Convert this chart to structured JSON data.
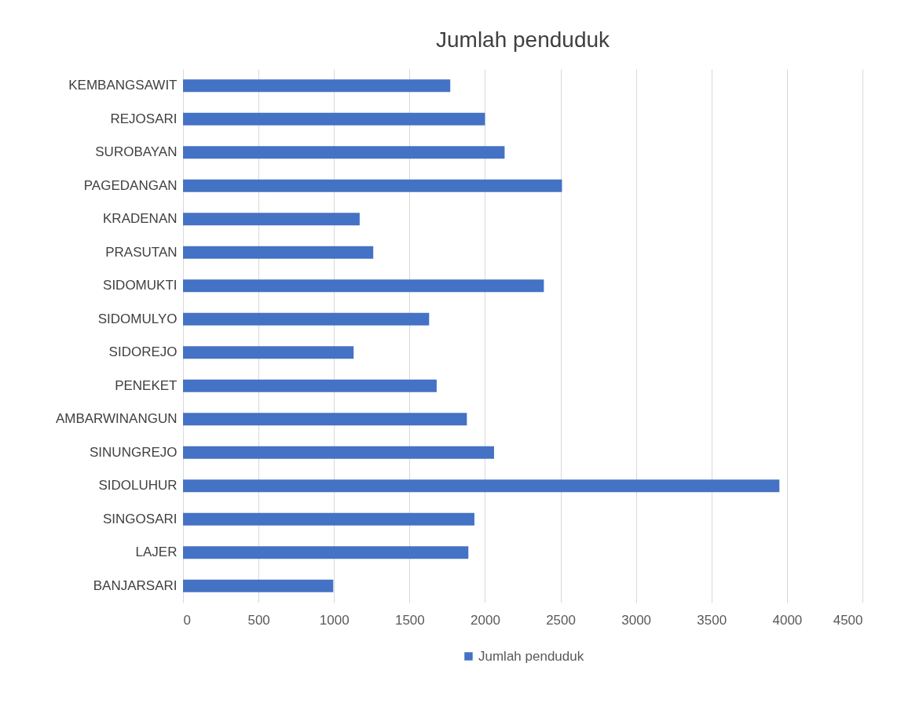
{
  "chart_data": {
    "type": "bar",
    "orientation": "horizontal",
    "title": "Jumlah penduduk",
    "categories": [
      "KEMBANGSAWIT",
      "REJOSARI",
      "SUROBAYAN",
      "PAGEDANGAN",
      "KRADENAN",
      "PRASUTAN",
      "SIDOMUKTI",
      "SIDOMULYO",
      "SIDOREJO",
      "PENEKET",
      "AMBARWINANGUN",
      "SINUNGREJO",
      "SIDOLUHUR",
      "SINGOSARI",
      "LAJER",
      "BANJARSARI"
    ],
    "series": [
      {
        "name": "Jumlah penduduk",
        "color": "#4472c4",
        "values": [
          1770,
          2000,
          2130,
          2510,
          1170,
          1260,
          2390,
          1630,
          1130,
          1680,
          1880,
          2060,
          3950,
          1930,
          1890,
          995
        ]
      }
    ],
    "xlim": [
      0,
      4500
    ],
    "xticks": [
      0,
      500,
      1000,
      1500,
      2000,
      2500,
      3000,
      3500,
      4000,
      4500
    ],
    "grid": "x",
    "legend": "bottom"
  }
}
